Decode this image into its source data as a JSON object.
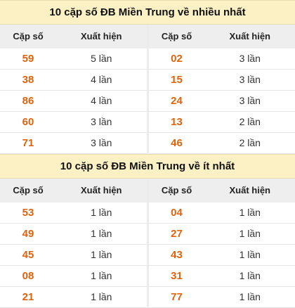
{
  "most": {
    "title": "10 cặp số ĐB Miền Trung về nhiều nhất",
    "left": {
      "header": {
        "pair": "Cặp số",
        "count": "Xuất hiện"
      },
      "rows": [
        {
          "pair": "59",
          "count": "5 lần"
        },
        {
          "pair": "38",
          "count": "4 lần"
        },
        {
          "pair": "86",
          "count": "4 lần"
        },
        {
          "pair": "60",
          "count": "3 lần"
        },
        {
          "pair": "71",
          "count": "3 lần"
        }
      ]
    },
    "right": {
      "header": {
        "pair": "Cặp số",
        "count": "Xuất hiện"
      },
      "rows": [
        {
          "pair": "02",
          "count": "3 lần"
        },
        {
          "pair": "15",
          "count": "3 lần"
        },
        {
          "pair": "24",
          "count": "3 lần"
        },
        {
          "pair": "13",
          "count": "2 lần"
        },
        {
          "pair": "46",
          "count": "2 lần"
        }
      ]
    }
  },
  "least": {
    "title": "10 cặp số ĐB Miền Trung về ít nhất",
    "left": {
      "header": {
        "pair": "Cặp số",
        "count": "Xuất hiện"
      },
      "rows": [
        {
          "pair": "53",
          "count": "1 lần"
        },
        {
          "pair": "49",
          "count": "1 lần"
        },
        {
          "pair": "45",
          "count": "1 lần"
        },
        {
          "pair": "08",
          "count": "1 lần"
        },
        {
          "pair": "21",
          "count": "1 lần"
        }
      ]
    },
    "right": {
      "header": {
        "pair": "Cặp số",
        "count": "Xuất hiện"
      },
      "rows": [
        {
          "pair": "04",
          "count": "1 lần"
        },
        {
          "pair": "27",
          "count": "1 lần"
        },
        {
          "pair": "43",
          "count": "1 lần"
        },
        {
          "pair": "31",
          "count": "1 lần"
        },
        {
          "pair": "77",
          "count": "1 lần"
        }
      ]
    }
  },
  "colors": {
    "title_bg": "#fcf1c4",
    "header_bg": "#eeeeee",
    "number": "#e0620c"
  }
}
